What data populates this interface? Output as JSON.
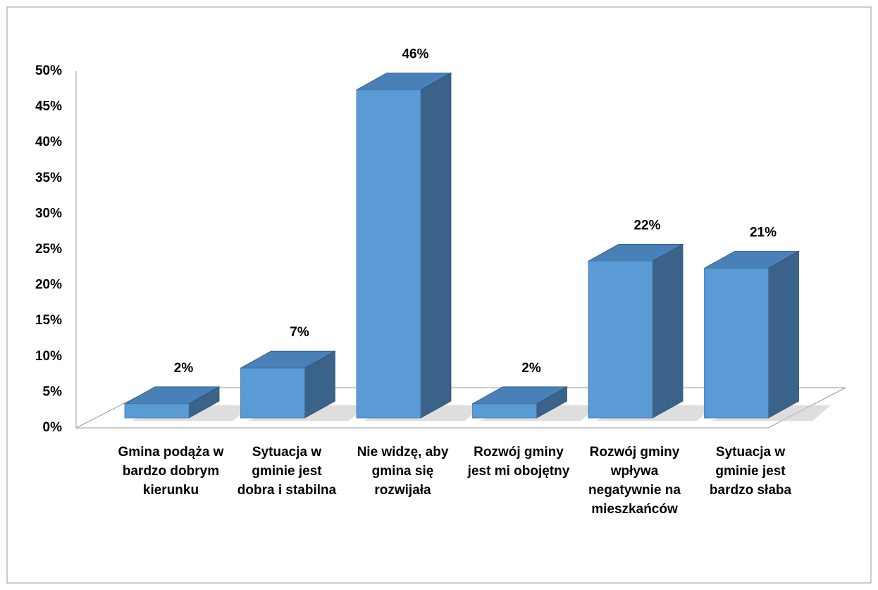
{
  "chart_data": {
    "type": "bar3d",
    "categories": [
      "Gmina podąża w bardzo dobrym kierunku",
      "Sytuacja w gminie jest dobra i stabilna",
      "Nie widzę, aby gmina się rozwijała",
      "Rozwój gminy jest mi obojętny",
      "Rozwój gminy wpływa negatywnie na mieszkańców",
      "Sytuacja w gminie jest bardzo słaba"
    ],
    "values": [
      2,
      7,
      46,
      2,
      22,
      21
    ],
    "value_labels": [
      "2%",
      "7%",
      "46%",
      "2%",
      "22%",
      "21%"
    ],
    "color": "#5b9bd5",
    "ylim": [
      0,
      50
    ],
    "yticks": [
      {
        "value": 0,
        "label": "0%"
      },
      {
        "value": 5,
        "label": "5%"
      },
      {
        "value": 10,
        "label": "10%"
      },
      {
        "value": 15,
        "label": "15%"
      },
      {
        "value": 20,
        "label": "20%"
      },
      {
        "value": 25,
        "label": "25%"
      },
      {
        "value": 30,
        "label": "30%"
      },
      {
        "value": 35,
        "label": "35%"
      },
      {
        "value": 40,
        "label": "40%"
      },
      {
        "value": 45,
        "label": "45%"
      },
      {
        "value": 50,
        "label": "50%"
      }
    ],
    "grid": false
  }
}
